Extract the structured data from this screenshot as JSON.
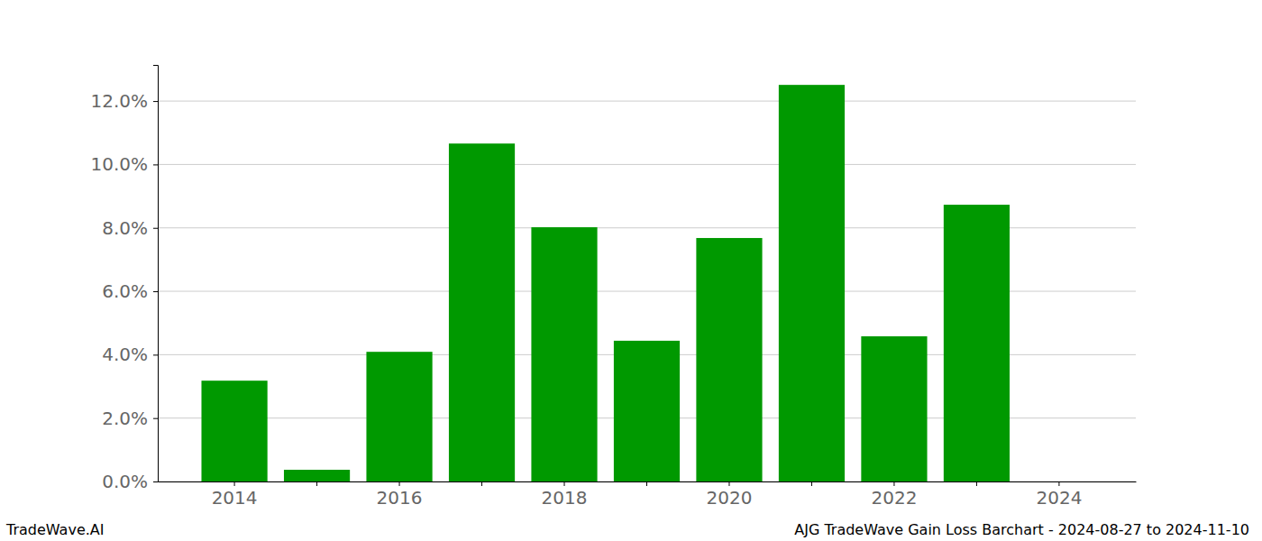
{
  "chart_data": {
    "type": "bar",
    "title": "AJG TradeWave Gain Loss Barchart - 2024-08-27 to 2024-11-10",
    "annotations": [
      "TradeWave.AI"
    ],
    "categories": [
      "2014",
      null,
      "2016",
      null,
      "2018",
      null,
      "2020",
      null,
      "2022",
      null,
      "2024"
    ],
    "values": [
      3.18,
      0.37,
      4.09,
      10.66,
      8.02,
      4.44,
      7.68,
      12.51,
      4.58,
      8.73,
      null
    ],
    "color": "#009900",
    "ylim": [
      0,
      13.14
    ],
    "yticks": [
      {
        "value": 0,
        "label": "0.0%"
      },
      {
        "value": 2,
        "label": "2.0%"
      },
      {
        "value": 4,
        "label": "4.0%"
      },
      {
        "value": 6,
        "label": "6.0%"
      },
      {
        "value": 8,
        "label": "8.0%"
      },
      {
        "value": 10,
        "label": "10.0%"
      },
      {
        "value": 12,
        "label": "12.0%"
      }
    ],
    "grid": true
  }
}
